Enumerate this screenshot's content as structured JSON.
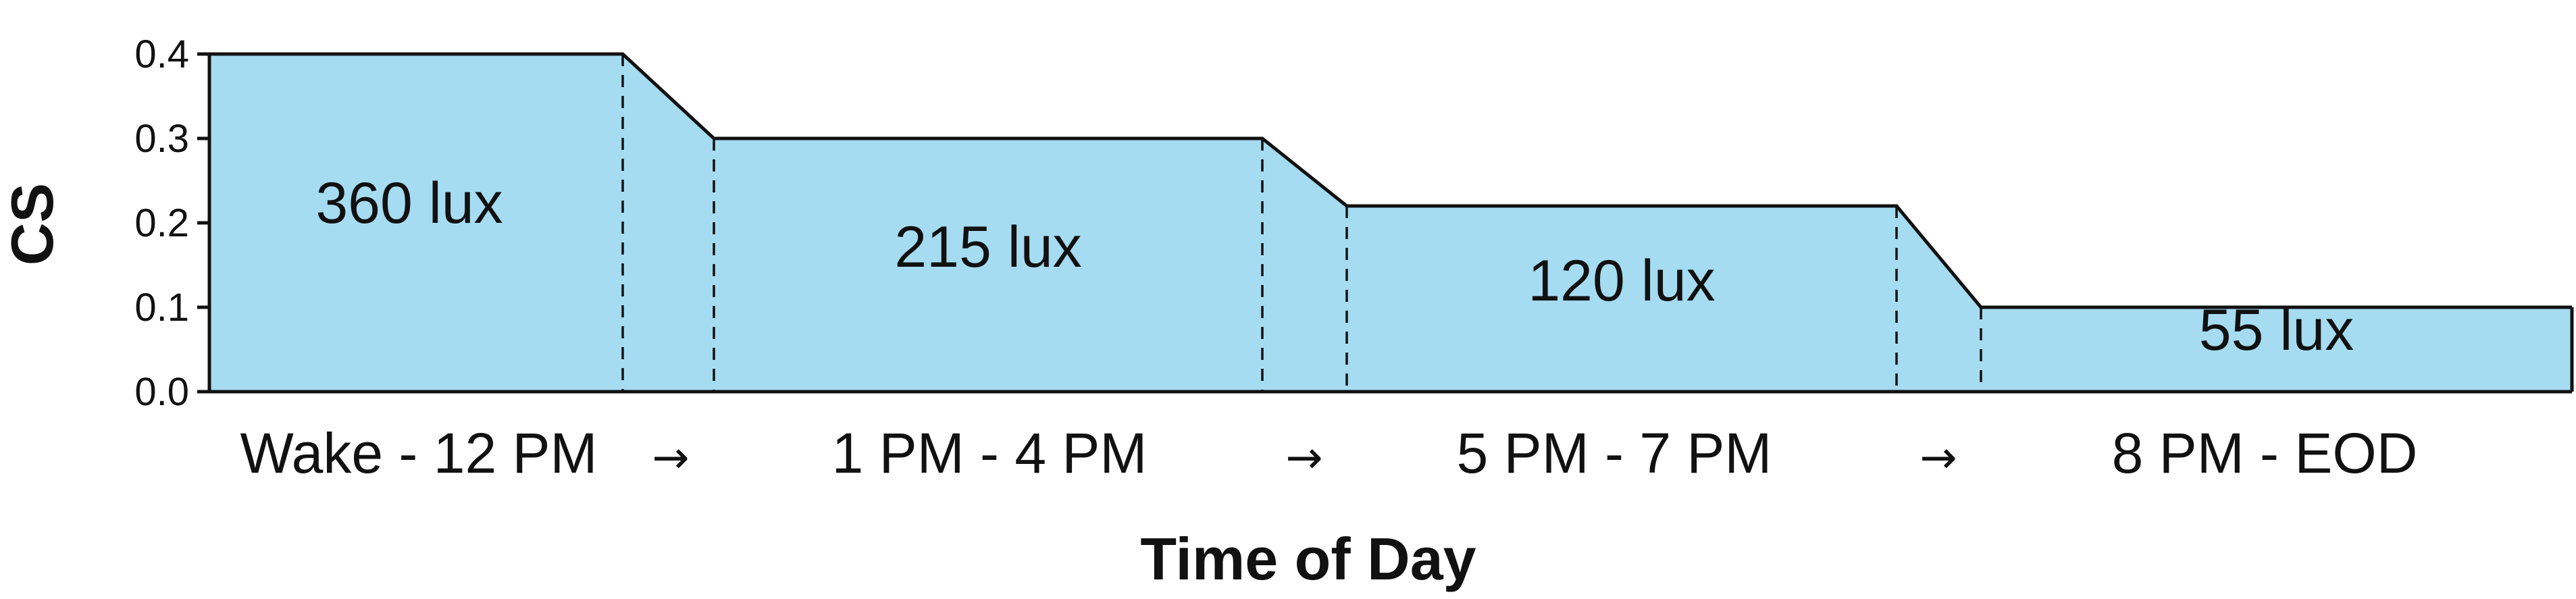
{
  "chart_data": {
    "type": "area",
    "title": "",
    "xlabel": "Time of Day",
    "ylabel": "CS",
    "ylim": [
      0,
      0.4
    ],
    "yticks": [
      "0.0",
      "0.1",
      "0.2",
      "0.3",
      "0.4"
    ],
    "grid": false,
    "legend": "none",
    "fill_color": "#a6dcf1",
    "line_color": "#111111",
    "categories": [
      "Wake - 12 PM",
      "1 PM - 4 PM",
      "5 PM - 7 PM",
      "8 PM - EOD"
    ],
    "transition_label": "→",
    "values": [
      0.4,
      0.3,
      0.22,
      0.1
    ],
    "bar_labels": [
      "360 lux",
      "215 lux",
      "120 lux",
      "55 lux"
    ]
  }
}
